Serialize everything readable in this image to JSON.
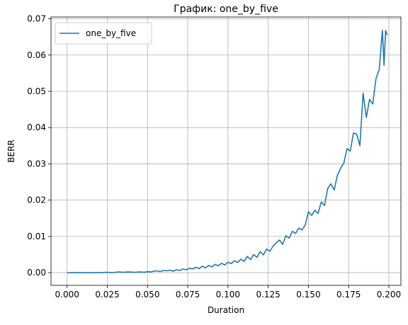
{
  "chart_data": {
    "type": "line",
    "title": "График: one_by_five",
    "xlabel": "Duration",
    "ylabel": "BERR",
    "xlim": [
      -0.01,
      0.2075
    ],
    "ylim": [
      -0.0035,
      0.0705
    ],
    "xticks": [
      0.0,
      0.025,
      0.05,
      0.075,
      0.1,
      0.125,
      0.15,
      0.175,
      0.2
    ],
    "xtick_labels": [
      "0.000",
      "0.025",
      "0.050",
      "0.075",
      "0.100",
      "0.125",
      "0.150",
      "0.175",
      "0.200"
    ],
    "yticks": [
      0.0,
      0.01,
      0.02,
      0.03,
      0.04,
      0.05,
      0.06,
      0.07
    ],
    "ytick_labels": [
      "0.00",
      "0.01",
      "0.02",
      "0.03",
      "0.04",
      "0.05",
      "0.06",
      "0.07"
    ],
    "grid": true,
    "legend_position": "top-left",
    "series": [
      {
        "name": "one_by_five",
        "color": "#1f77b4",
        "x": [
          0.0,
          0.01,
          0.02,
          0.025,
          0.028,
          0.032,
          0.035,
          0.038,
          0.042,
          0.045,
          0.048,
          0.05,
          0.052,
          0.054,
          0.056,
          0.058,
          0.06,
          0.062,
          0.064,
          0.066,
          0.068,
          0.07,
          0.072,
          0.074,
          0.076,
          0.078,
          0.08,
          0.082,
          0.084,
          0.086,
          0.088,
          0.09,
          0.092,
          0.094,
          0.096,
          0.098,
          0.1,
          0.102,
          0.104,
          0.106,
          0.108,
          0.11,
          0.112,
          0.114,
          0.116,
          0.118,
          0.12,
          0.122,
          0.124,
          0.126,
          0.128,
          0.13,
          0.132,
          0.134,
          0.136,
          0.138,
          0.14,
          0.142,
          0.144,
          0.146,
          0.148,
          0.15,
          0.152,
          0.154,
          0.156,
          0.158,
          0.16,
          0.162,
          0.164,
          0.166,
          0.168,
          0.17,
          0.172,
          0.174,
          0.176,
          0.178,
          0.18,
          0.182,
          0.184,
          0.186,
          0.188,
          0.19,
          0.192,
          0.194,
          0.196,
          0.197,
          0.198,
          0.199
        ],
        "values": [
          0.0,
          0.0,
          0.0,
          0.0001,
          0.0,
          0.0002,
          0.0001,
          0.0002,
          0.0001,
          0.0002,
          0.0001,
          0.0003,
          0.0002,
          0.0004,
          0.0005,
          0.0003,
          0.0006,
          0.0005,
          0.0007,
          0.0004,
          0.0008,
          0.0006,
          0.001,
          0.0008,
          0.0012,
          0.001,
          0.0015,
          0.0011,
          0.0018,
          0.0013,
          0.002,
          0.0016,
          0.0023,
          0.0019,
          0.0026,
          0.0021,
          0.0029,
          0.0025,
          0.0033,
          0.0028,
          0.0037,
          0.0031,
          0.0045,
          0.0036,
          0.005,
          0.0042,
          0.0058,
          0.0049,
          0.0065,
          0.0059,
          0.0073,
          0.0082,
          0.009,
          0.0078,
          0.0102,
          0.0095,
          0.0114,
          0.0108,
          0.0123,
          0.0118,
          0.0131,
          0.0168,
          0.0158,
          0.0172,
          0.0163,
          0.0195,
          0.0185,
          0.0232,
          0.0245,
          0.0228,
          0.0268,
          0.0288,
          0.0302,
          0.0342,
          0.0335,
          0.0385,
          0.0382,
          0.035,
          0.0495,
          0.0428,
          0.0478,
          0.0465,
          0.0535,
          0.056,
          0.0668,
          0.0572,
          0.0668,
          0.0655
        ]
      }
    ]
  }
}
